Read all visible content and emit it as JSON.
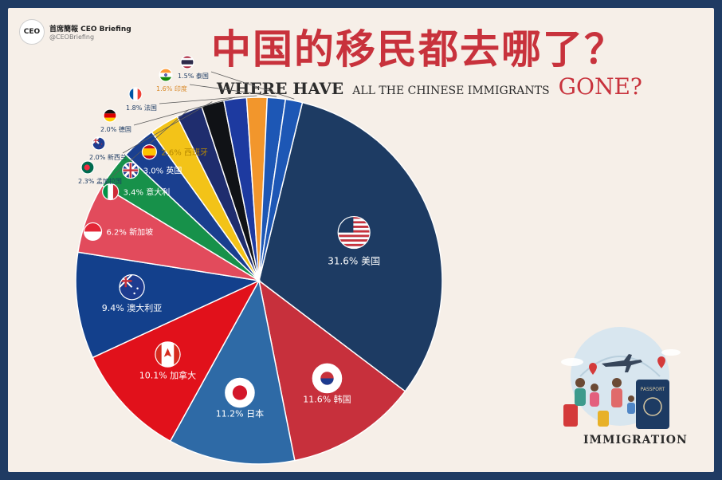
{
  "brand": {
    "logo_text": "CEO",
    "name": "首席簡報 CEO Briefing",
    "handle": "@CEOBriefing"
  },
  "title": {
    "cn": "中国的移民都去哪了？",
    "en_part1": "WHERE HAVE",
    "en_part2": "ALL THE CHINESE IMMIGRANTS",
    "en_part3": "GONE?"
  },
  "illustration": {
    "label": "IMMIGRATION",
    "passport_text": "PASSPORT"
  },
  "chart_data": {
    "type": "pie",
    "slices": [
      {
        "country": "美国",
        "value": 31.6,
        "label": "31.6% 美国",
        "color": "#1d3b63",
        "flag": "us"
      },
      {
        "country": "韩国",
        "value": 11.6,
        "label": "11.6% 韩国",
        "color": "#c7303c",
        "flag": "kr"
      },
      {
        "country": "日本",
        "value": 11.2,
        "label": "11.2% 日本",
        "color": "#2e6aa6",
        "flag": "jp"
      },
      {
        "country": "加拿大",
        "value": 10.1,
        "label": "10.1% 加拿大",
        "color": "#e1111b",
        "flag": "ca"
      },
      {
        "country": "澳大利亚",
        "value": 9.4,
        "label": "9.4% 澳大利亚",
        "color": "#13408c",
        "flag": "au"
      },
      {
        "country": "新加坡",
        "value": 6.2,
        "label": "6.2% 新加坡",
        "color": "#e24b5c",
        "flag": "sg"
      },
      {
        "country": "意大利",
        "value": 3.4,
        "label": "3.4% 意大利",
        "color": "#17914a",
        "flag": "it"
      },
      {
        "country": "英国",
        "value": 3.0,
        "label": "3.0% 英国",
        "color": "#1a3f8f",
        "flag": "gb"
      },
      {
        "country": "西班牙",
        "value": 2.6,
        "label": "2.6% 西班牙",
        "color": "#f3c318",
        "flag": "es"
      },
      {
        "country": "孟加拉国",
        "value": 2.3,
        "label": "2.3% 孟加拉国",
        "color": "#1f2d6e",
        "flag": "bd"
      },
      {
        "country": "新西兰",
        "value": 2.0,
        "label": "2.0% 新西兰",
        "color": "#101216",
        "flag": "nz"
      },
      {
        "country": "德国",
        "value": 2.0,
        "label": "2.0% 德国",
        "color": "#1d3aa0",
        "flag": "de"
      },
      {
        "country": "法国",
        "value": 1.8,
        "label": "1.8% 法国",
        "color": "#f2962c",
        "flag": "fr"
      },
      {
        "country": "印度",
        "value": 1.6,
        "label": "1.6% 印度",
        "color": "#1d57b5",
        "flag": "in"
      },
      {
        "country": "泰国",
        "value": 1.5,
        "label": "1.5% 泰国",
        "color": "#1d57b5",
        "flag": "th"
      }
    ]
  }
}
